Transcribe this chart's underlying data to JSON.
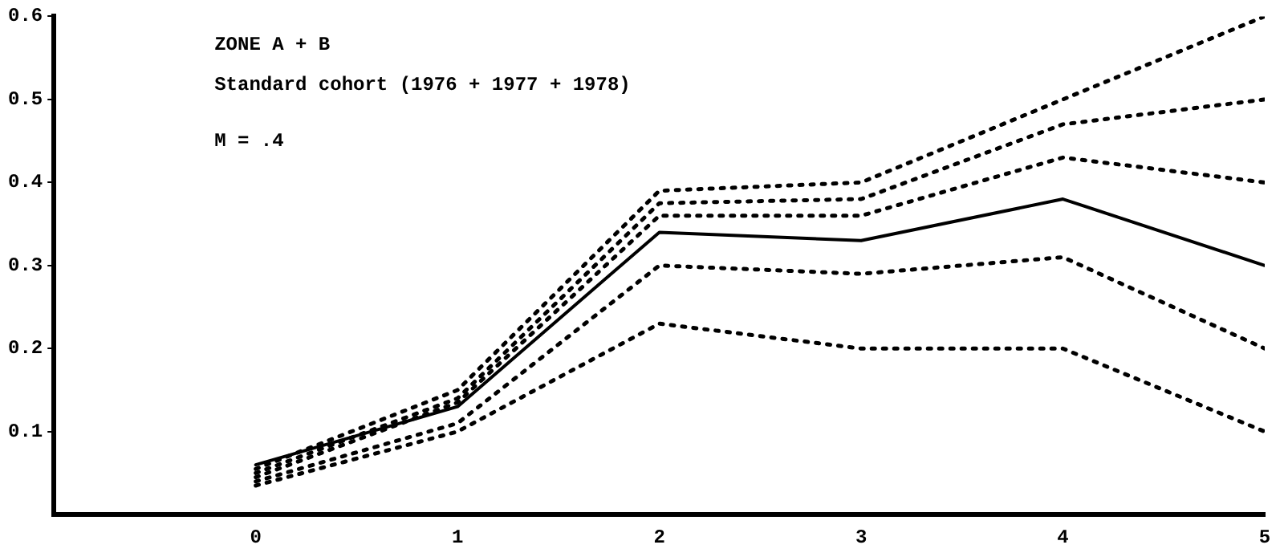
{
  "chart_data": {
    "type": "line",
    "x": [
      0,
      1,
      2,
      3,
      4,
      5
    ],
    "series": [
      {
        "color": "#000000",
        "line_style": "solid",
        "values": [
          0.06,
          0.13,
          0.34,
          0.33,
          0.38,
          0.3
        ]
      },
      {
        "color": "#000000",
        "line_style": "dotted",
        "values": [
          0.055,
          0.15,
          0.39,
          0.4,
          0.5,
          0.6
        ]
      },
      {
        "color": "#000000",
        "line_style": "dotted",
        "values": [
          0.05,
          0.14,
          0.375,
          0.38,
          0.47,
          0.5
        ]
      },
      {
        "color": "#000000",
        "line_style": "dotted",
        "values": [
          0.045,
          0.135,
          0.36,
          0.36,
          0.43,
          0.4
        ]
      },
      {
        "color": "#000000",
        "line_style": "dotted",
        "values": [
          0.04,
          0.11,
          0.3,
          0.29,
          0.31,
          0.2
        ]
      },
      {
        "color": "#000000",
        "line_style": "dotted",
        "values": [
          0.035,
          0.1,
          0.23,
          0.2,
          0.2,
          0.1
        ]
      }
    ],
    "xlim": [
      -1,
      5
    ],
    "xticks": [
      0,
      1,
      2,
      3,
      4,
      5
    ],
    "ylim": [
      0,
      0.6
    ],
    "yticks": [
      0.1,
      0.2,
      0.3,
      0.4,
      0.5,
      0.6
    ],
    "annotations": [
      "ZONE A + B",
      "Standard cohort (1976 + 1977 + 1978)",
      "M = .4"
    ],
    "grid": false,
    "legend": false,
    "marker": "none"
  }
}
